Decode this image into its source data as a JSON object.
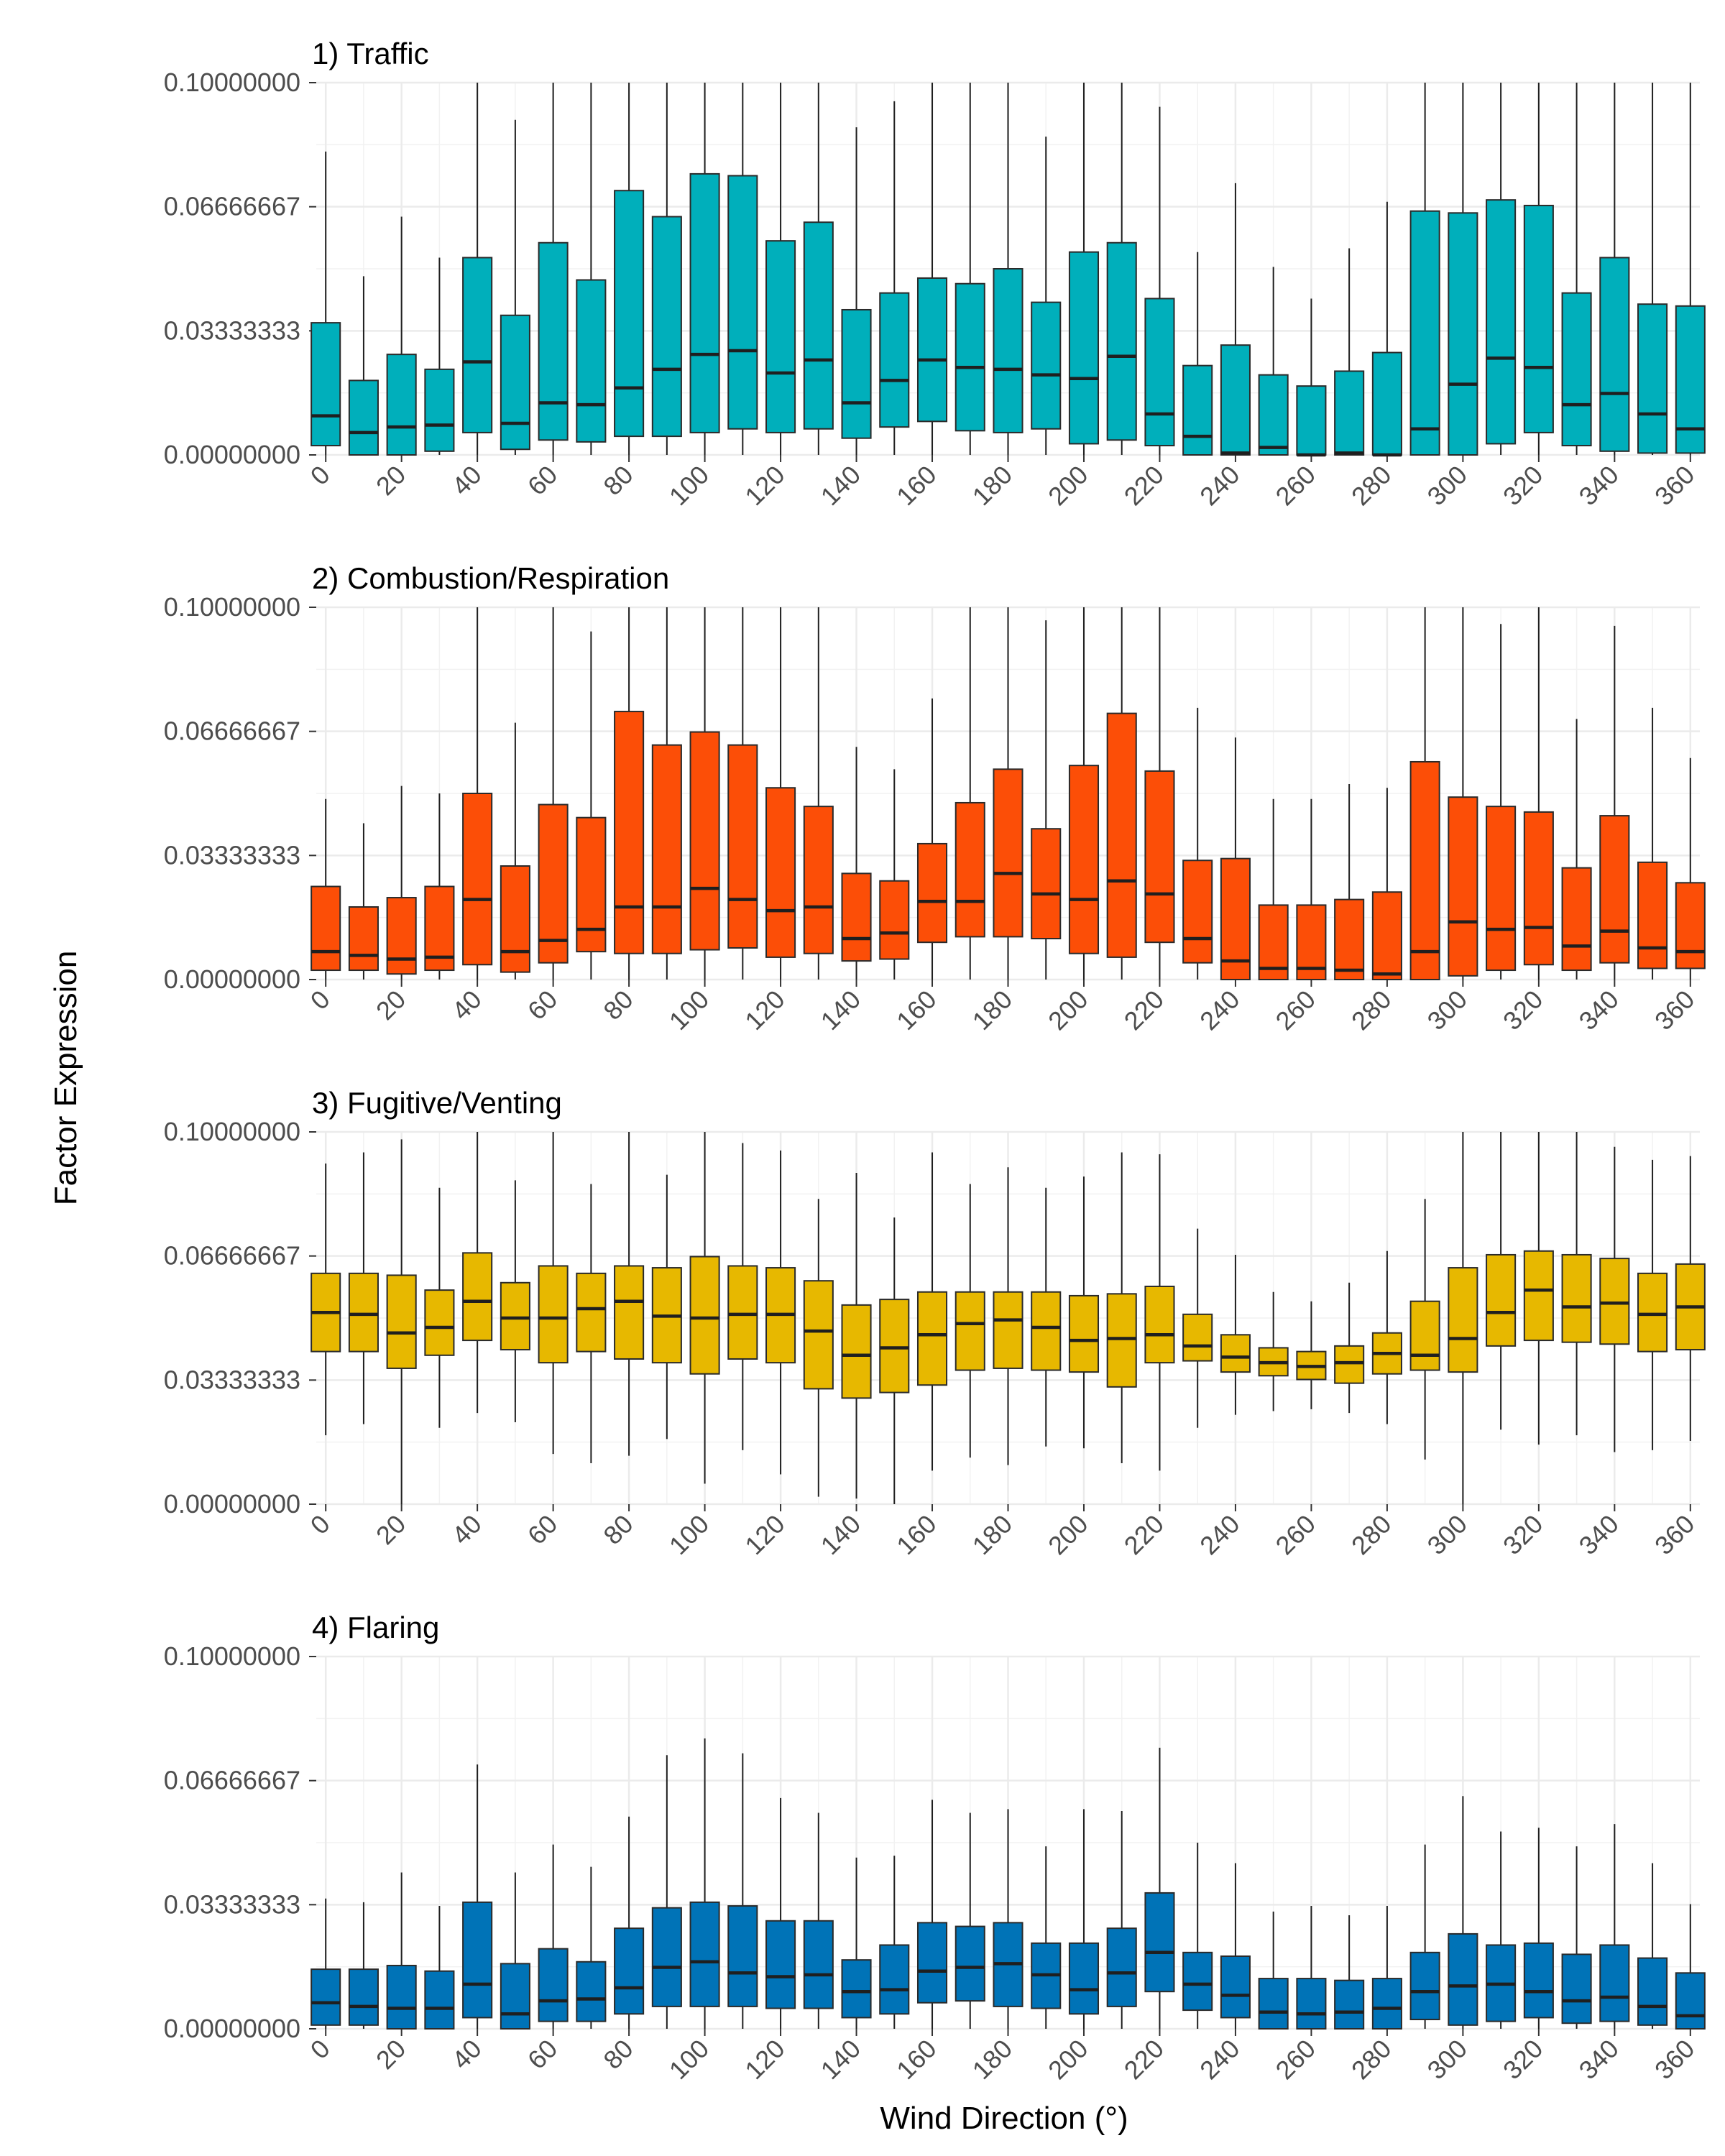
{
  "chart_data": {
    "type": "boxplot",
    "xlabel": "Wind Direction (°)",
    "ylabel": "Factor Expression",
    "categories": [
      0,
      10,
      20,
      30,
      40,
      50,
      60,
      70,
      80,
      90,
      100,
      110,
      120,
      130,
      140,
      150,
      160,
      170,
      180,
      190,
      200,
      210,
      220,
      230,
      240,
      250,
      260,
      270,
      280,
      290,
      300,
      310,
      320,
      330,
      340,
      350,
      360
    ],
    "xticks": [
      0,
      20,
      40,
      60,
      80,
      100,
      120,
      140,
      160,
      180,
      200,
      220,
      240,
      260,
      280,
      300,
      320,
      340,
      360
    ],
    "ylim": [
      0,
      0.1
    ],
    "yticks": [
      0,
      0.03333333,
      0.06666667,
      0.1
    ],
    "ytick_labels": [
      "0.00000000",
      "0.03333333",
      "0.06666667",
      "0.10000000"
    ],
    "grid": true,
    "panels": [
      {
        "title": "1) Traffic",
        "color": "#00AFBB",
        "series": {
          "q1": [
            0.0025,
            0.0,
            0.0,
            0.001,
            0.006,
            0.0015,
            0.004,
            0.0035,
            0.005,
            0.005,
            0.006,
            0.007,
            0.006,
            0.007,
            0.0045,
            0.0075,
            0.009,
            0.0065,
            0.006,
            0.007,
            0.003,
            0.004,
            0.0025,
            0.0,
            0.0,
            0.0,
            0.0,
            0.0,
            0.0,
            0.0,
            0.0,
            0.003,
            0.006,
            0.0025,
            0.001,
            0.0005,
            0.0005
          ],
          "median": [
            0.0105,
            0.006,
            0.0075,
            0.008,
            0.025,
            0.0085,
            0.014,
            0.0135,
            0.018,
            0.023,
            0.027,
            0.028,
            0.022,
            0.0255,
            0.014,
            0.02,
            0.0255,
            0.0235,
            0.023,
            0.0215,
            0.0205,
            0.0265,
            0.011,
            0.005,
            0.0005,
            0.002,
            0.0,
            0.0005,
            0.0,
            0.007,
            0.019,
            0.026,
            0.0235,
            0.0135,
            0.0165,
            0.011,
            0.007
          ],
          "q3": [
            0.0355,
            0.02,
            0.027,
            0.023,
            0.053,
            0.0375,
            0.057,
            0.047,
            0.071,
            0.064,
            0.0755,
            0.075,
            0.0575,
            0.0625,
            0.039,
            0.0435,
            0.0475,
            0.046,
            0.05,
            0.041,
            0.0545,
            0.057,
            0.042,
            0.024,
            0.0295,
            0.0215,
            0.0185,
            0.0225,
            0.0275,
            0.0655,
            0.065,
            0.0685,
            0.067,
            0.0435,
            0.053,
            0.0405,
            0.04
          ],
          "lower": [
            0,
            0,
            0,
            0,
            0,
            0,
            0,
            0,
            0,
            0,
            0,
            0,
            0,
            0,
            0,
            0,
            0,
            0,
            0,
            0,
            0,
            0,
            0,
            0,
            0,
            0,
            0,
            0,
            0,
            0,
            0,
            0,
            0,
            0,
            0,
            0,
            0
          ],
          "upper": [
            0.0815,
            0.048,
            0.064,
            0.053,
            0.1,
            0.09,
            0.1,
            0.1,
            0.1,
            0.1,
            0.1,
            0.1,
            0.1,
            0.1,
            0.088,
            0.095,
            0.1,
            0.1,
            0.1,
            0.0855,
            0.1,
            0.1,
            0.0935,
            0.0545,
            0.073,
            0.0505,
            0.042,
            0.0555,
            0.068,
            0.1,
            0.1,
            0.1,
            0.1,
            0.1,
            0.1,
            0.1,
            0.1
          ]
        }
      },
      {
        "title": "2) Combustion/Respiration",
        "color": "#FC4E07",
        "series": {
          "q1": [
            0.0025,
            0.0025,
            0.0015,
            0.0025,
            0.004,
            0.002,
            0.0045,
            0.0075,
            0.007,
            0.007,
            0.008,
            0.0085,
            0.006,
            0.007,
            0.005,
            0.0055,
            0.01,
            0.0115,
            0.0115,
            0.011,
            0.007,
            0.006,
            0.01,
            0.0045,
            0.0,
            0.0,
            0.0,
            0.0,
            0.0,
            0.0,
            0.001,
            0.0025,
            0.004,
            0.0025,
            0.0045,
            0.003,
            0.003
          ],
          "median": [
            0.0075,
            0.0065,
            0.0055,
            0.006,
            0.0215,
            0.0075,
            0.0105,
            0.0135,
            0.0195,
            0.0195,
            0.0245,
            0.0215,
            0.0185,
            0.0195,
            0.011,
            0.0125,
            0.021,
            0.021,
            0.0285,
            0.023,
            0.0215,
            0.0265,
            0.023,
            0.011,
            0.005,
            0.003,
            0.003,
            0.0025,
            0.0015,
            0.0075,
            0.0155,
            0.0135,
            0.014,
            0.009,
            0.013,
            0.0085,
            0.0075
          ],
          "q3": [
            0.025,
            0.0195,
            0.022,
            0.025,
            0.05,
            0.0305,
            0.047,
            0.0435,
            0.072,
            0.063,
            0.0665,
            0.063,
            0.0515,
            0.0465,
            0.0285,
            0.0265,
            0.0365,
            0.0475,
            0.0565,
            0.0405,
            0.0575,
            0.0715,
            0.056,
            0.032,
            0.0325,
            0.02,
            0.02,
            0.0215,
            0.0235,
            0.0585,
            0.049,
            0.0465,
            0.045,
            0.03,
            0.044,
            0.0315,
            0.026
          ],
          "lower": [
            0,
            0,
            0,
            0,
            0,
            0,
            0,
            0,
            0,
            0,
            0,
            0,
            0,
            0,
            0,
            0,
            0,
            0,
            0,
            0,
            0,
            0,
            0,
            0,
            0,
            0,
            0,
            0,
            0,
            0,
            0,
            0,
            0,
            0,
            0,
            0,
            0
          ],
          "upper": [
            0.0485,
            0.042,
            0.052,
            0.05,
            0.1,
            0.069,
            0.1,
            0.0935,
            0.1,
            0.1,
            0.1,
            0.1,
            0.1,
            0.1,
            0.0625,
            0.0565,
            0.0755,
            0.1,
            0.1,
            0.0965,
            0.1,
            0.1,
            0.1,
            0.073,
            0.065,
            0.0485,
            0.0485,
            0.0525,
            0.0515,
            0.1,
            0.1,
            0.0955,
            0.1,
            0.07,
            0.095,
            0.073,
            0.0595
          ]
        }
      },
      {
        "title": "3) Fugitive/Venting",
        "color": "#E7B800",
        "series": {
          "q1": [
            0.041,
            0.041,
            0.0365,
            0.04,
            0.044,
            0.0415,
            0.038,
            0.041,
            0.039,
            0.038,
            0.035,
            0.039,
            0.038,
            0.031,
            0.0285,
            0.03,
            0.032,
            0.036,
            0.0365,
            0.036,
            0.0355,
            0.0315,
            0.038,
            0.0385,
            0.0355,
            0.0345,
            0.0335,
            0.0325,
            0.035,
            0.036,
            0.0355,
            0.0425,
            0.044,
            0.0435,
            0.043,
            0.041,
            0.0415
          ],
          "median": [
            0.0515,
            0.051,
            0.046,
            0.0475,
            0.0545,
            0.05,
            0.05,
            0.0525,
            0.0545,
            0.0505,
            0.05,
            0.051,
            0.051,
            0.0465,
            0.04,
            0.042,
            0.0455,
            0.0485,
            0.0495,
            0.0475,
            0.044,
            0.0445,
            0.0455,
            0.0425,
            0.0395,
            0.038,
            0.037,
            0.038,
            0.0405,
            0.04,
            0.0445,
            0.0515,
            0.0575,
            0.053,
            0.054,
            0.051,
            0.053
          ],
          "q3": [
            0.062,
            0.062,
            0.0615,
            0.0575,
            0.0675,
            0.0595,
            0.064,
            0.062,
            0.064,
            0.0635,
            0.0665,
            0.064,
            0.0635,
            0.06,
            0.0535,
            0.055,
            0.057,
            0.057,
            0.057,
            0.057,
            0.056,
            0.0565,
            0.0585,
            0.051,
            0.0455,
            0.042,
            0.041,
            0.0425,
            0.046,
            0.0545,
            0.0635,
            0.067,
            0.068,
            0.067,
            0.066,
            0.062,
            0.0645
          ],
          "lower": [
            0.0185,
            0.0215,
            0.0,
            0.0205,
            0.0245,
            0.022,
            0.0135,
            0.011,
            0.013,
            0.0175,
            0.0055,
            0.0145,
            0.008,
            0.002,
            0.0015,
            0.0,
            0.009,
            0.0125,
            0.0105,
            0.0155,
            0.015,
            0.011,
            0.009,
            0.0205,
            0.024,
            0.025,
            0.0255,
            0.0245,
            0.0215,
            0.012,
            0.0,
            0.02,
            0.016,
            0.0185,
            0.014,
            0.0145,
            0.017
          ],
          "upper": [
            0.0915,
            0.0945,
            0.098,
            0.085,
            0.1,
            0.087,
            0.1,
            0.086,
            0.1,
            0.0885,
            0.1,
            0.097,
            0.095,
            0.082,
            0.089,
            0.077,
            0.0945,
            0.086,
            0.0905,
            0.085,
            0.088,
            0.0945,
            0.094,
            0.074,
            0.067,
            0.057,
            0.0545,
            0.0595,
            0.068,
            0.082,
            0.1,
            0.1,
            0.1,
            0.1,
            0.096,
            0.0925,
            0.0935
          ]
        }
      },
      {
        "title": "4) Flaring",
        "color": "#0073B7",
        "series": {
          "q1": [
            0.001,
            0.001,
            0.0,
            0.0,
            0.003,
            0.0,
            0.002,
            0.002,
            0.004,
            0.006,
            0.006,
            0.006,
            0.0055,
            0.0055,
            0.003,
            0.004,
            0.007,
            0.0075,
            0.006,
            0.0055,
            0.004,
            0.006,
            0.01,
            0.005,
            0.003,
            0.0,
            0.0,
            0.0,
            0.0,
            0.0025,
            0.001,
            0.002,
            0.003,
            0.0015,
            0.002,
            0.001,
            0.0
          ],
          "median": [
            0.007,
            0.006,
            0.0055,
            0.0055,
            0.012,
            0.004,
            0.0075,
            0.008,
            0.011,
            0.0165,
            0.018,
            0.015,
            0.014,
            0.0145,
            0.01,
            0.0105,
            0.0155,
            0.0165,
            0.0175,
            0.0145,
            0.0105,
            0.015,
            0.0205,
            0.012,
            0.009,
            0.0045,
            0.004,
            0.0045,
            0.0055,
            0.01,
            0.0115,
            0.012,
            0.01,
            0.0075,
            0.0085,
            0.006,
            0.0035
          ],
          "q3": [
            0.016,
            0.016,
            0.017,
            0.0155,
            0.034,
            0.0175,
            0.0215,
            0.018,
            0.027,
            0.0325,
            0.034,
            0.033,
            0.029,
            0.029,
            0.0185,
            0.0225,
            0.0285,
            0.0275,
            0.0285,
            0.023,
            0.023,
            0.027,
            0.0365,
            0.0205,
            0.0195,
            0.0135,
            0.0135,
            0.013,
            0.0135,
            0.0205,
            0.0255,
            0.0225,
            0.023,
            0.02,
            0.0225,
            0.019,
            0.015
          ],
          "lower": [
            0,
            0,
            0,
            0,
            0,
            0,
            0,
            0,
            0,
            0,
            0,
            0,
            0,
            0,
            0,
            0,
            0,
            0,
            0,
            0,
            0,
            0,
            0,
            0,
            0,
            0,
            0,
            0,
            0,
            0,
            0,
            0,
            0,
            0,
            0,
            0,
            0
          ],
          "upper": [
            0.035,
            0.034,
            0.042,
            0.033,
            0.071,
            0.042,
            0.0495,
            0.0435,
            0.057,
            0.0735,
            0.078,
            0.074,
            0.062,
            0.058,
            0.046,
            0.0465,
            0.0615,
            0.058,
            0.059,
            0.049,
            0.059,
            0.0585,
            0.0755,
            0.05,
            0.0445,
            0.0315,
            0.033,
            0.0305,
            0.033,
            0.0495,
            0.0625,
            0.053,
            0.054,
            0.049,
            0.055,
            0.0445,
            0.0335
          ]
        }
      }
    ]
  }
}
